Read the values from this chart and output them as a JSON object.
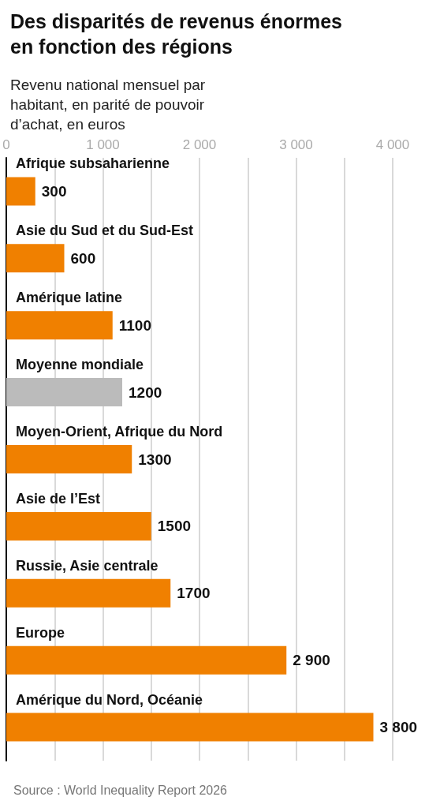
{
  "chart_data": {
    "type": "bar",
    "orientation": "horizontal",
    "title": "Des disparités de revenus énormes en fonction des régions",
    "subtitle": "Revenu national mensuel par habitant, en parité de pouvoir d’achat, en euros",
    "categories": [
      "Afrique subsaharienne",
      "Asie du Sud et du Sud-Est",
      "Amérique latine",
      "Moyenne mondiale",
      "Moyen-Orient, Afrique du Nord",
      "Asie de l’Est",
      "Russie, Asie centrale",
      "Europe",
      "Amérique du Nord, Océanie"
    ],
    "values": [
      300,
      600,
      1100,
      1200,
      1300,
      1500,
      1700,
      2900,
      3800
    ],
    "value_labels": [
      "300",
      "600",
      "1100",
      "1200",
      "1300",
      "1500",
      "1700",
      "2 900",
      "3 800"
    ],
    "colors": [
      "#f08000",
      "#f08000",
      "#f08000",
      "#bbbbbb",
      "#f08000",
      "#f08000",
      "#f08000",
      "#f08000",
      "#f08000"
    ],
    "xlim": [
      0,
      4000
    ],
    "xticks": [
      0,
      {
        "value": 500,
        "label": null
      },
      {
        "value": 1000,
        "label": "1 000"
      },
      {
        "value": 1500,
        "label": null
      },
      {
        "value": 2000,
        "label": "2 000"
      },
      {
        "value": 2500,
        "label": null
      },
      {
        "value": 3000,
        "label": "3 000"
      },
      {
        "value": 3500,
        "label": null
      },
      {
        "value": 4000,
        "label": "4 000"
      }
    ],
    "grid": "x",
    "annotations": [
      "Source : World Inequality Report 2026"
    ]
  }
}
